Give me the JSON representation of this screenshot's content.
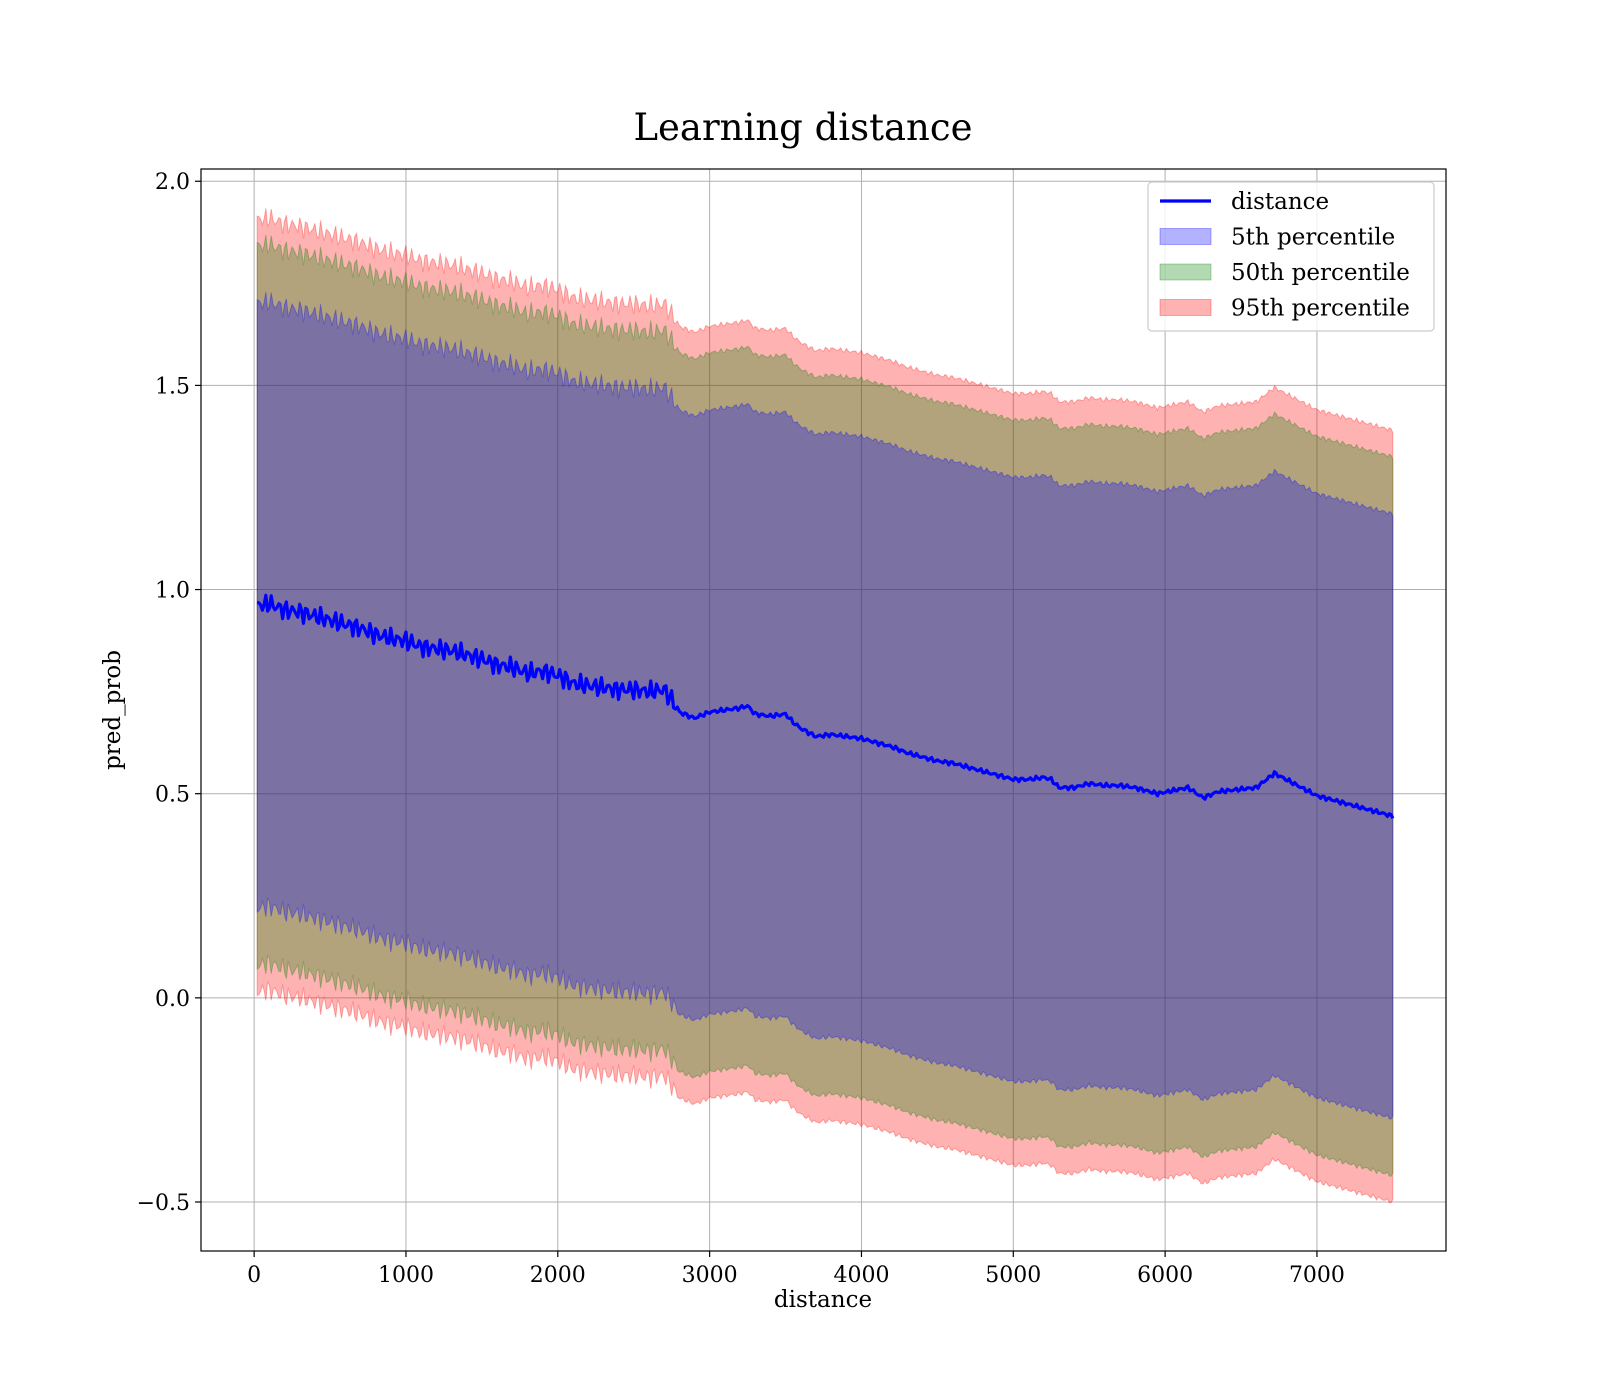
{
  "chart_data": {
    "type": "line",
    "title": "Learning distance",
    "xlabel": "distance",
    "ylabel": "pred_prob",
    "xlim": [
      -350,
      7850
    ],
    "ylim": [
      -0.62,
      2.03
    ],
    "grid": true,
    "legend_position": "top-right",
    "x_ticks": [
      0,
      1000,
      2000,
      3000,
      4000,
      5000,
      6000,
      7000
    ],
    "x_tick_labels": [
      "0",
      "1000",
      "2000",
      "3000",
      "4000",
      "5000",
      "6000",
      "7000"
    ],
    "y_ticks": [
      -0.5,
      0.0,
      0.5,
      1.0,
      1.5,
      2.0
    ],
    "y_tick_labels": [
      "−0.5",
      "0.0",
      "0.5",
      "1.0",
      "1.5",
      "2.0"
    ],
    "legend": [
      {
        "label": "distance",
        "kind": "line",
        "color": "#0000ff"
      },
      {
        "label": "5th percentile",
        "kind": "patch",
        "color": "#0000ff"
      },
      {
        "label": "50th percentile",
        "kind": "patch",
        "color": "#008000"
      },
      {
        "label": "95th percentile",
        "kind": "patch",
        "color": "#ff0000"
      }
    ],
    "series": [
      {
        "name": "distance",
        "color": "#0000ff",
        "x": [
          20,
          100,
          200,
          300,
          400,
          500,
          600,
          700,
          800,
          900,
          1000,
          1100,
          1200,
          1300,
          1400,
          1500,
          1600,
          1700,
          1800,
          1900,
          2000,
          2100,
          2200,
          2300,
          2400,
          2500,
          2600,
          2700,
          2750,
          2800,
          2900,
          3000,
          3100,
          3200,
          3250,
          3300,
          3400,
          3500,
          3550,
          3600,
          3700,
          3800,
          3900,
          4000,
          4100,
          4200,
          4300,
          4400,
          4500,
          4600,
          4700,
          4800,
          4900,
          5000,
          5100,
          5200,
          5250,
          5300,
          5400,
          5500,
          5600,
          5700,
          5800,
          5950,
          6150,
          6250,
          6350,
          6600,
          6720,
          7000,
          7500
        ],
        "y": [
          0.96,
          0.965,
          0.95,
          0.945,
          0.935,
          0.925,
          0.915,
          0.905,
          0.89,
          0.88,
          0.875,
          0.86,
          0.855,
          0.85,
          0.84,
          0.83,
          0.815,
          0.81,
          0.795,
          0.8,
          0.79,
          0.77,
          0.765,
          0.76,
          0.755,
          0.755,
          0.75,
          0.755,
          0.73,
          0.7,
          0.685,
          0.7,
          0.705,
          0.71,
          0.715,
          0.695,
          0.69,
          0.695,
          0.675,
          0.66,
          0.64,
          0.645,
          0.64,
          0.635,
          0.625,
          0.615,
          0.6,
          0.59,
          0.58,
          0.575,
          0.565,
          0.555,
          0.545,
          0.535,
          0.535,
          0.54,
          0.535,
          0.515,
          0.515,
          0.525,
          0.52,
          0.52,
          0.515,
          0.5,
          0.515,
          0.49,
          0.505,
          0.515,
          0.55,
          0.495,
          0.445
        ]
      }
    ],
    "bands": [
      {
        "name": "95th percentile",
        "color": "#ff0000",
        "opacity": 0.3,
        "half_width": 0.945
      },
      {
        "name": "50th percentile",
        "color": "#008000",
        "opacity": 0.3,
        "half_width": 0.88
      },
      {
        "name": "5th percentile",
        "color": "#0000ff",
        "opacity": 0.3,
        "half_width": 0.74
      }
    ]
  }
}
